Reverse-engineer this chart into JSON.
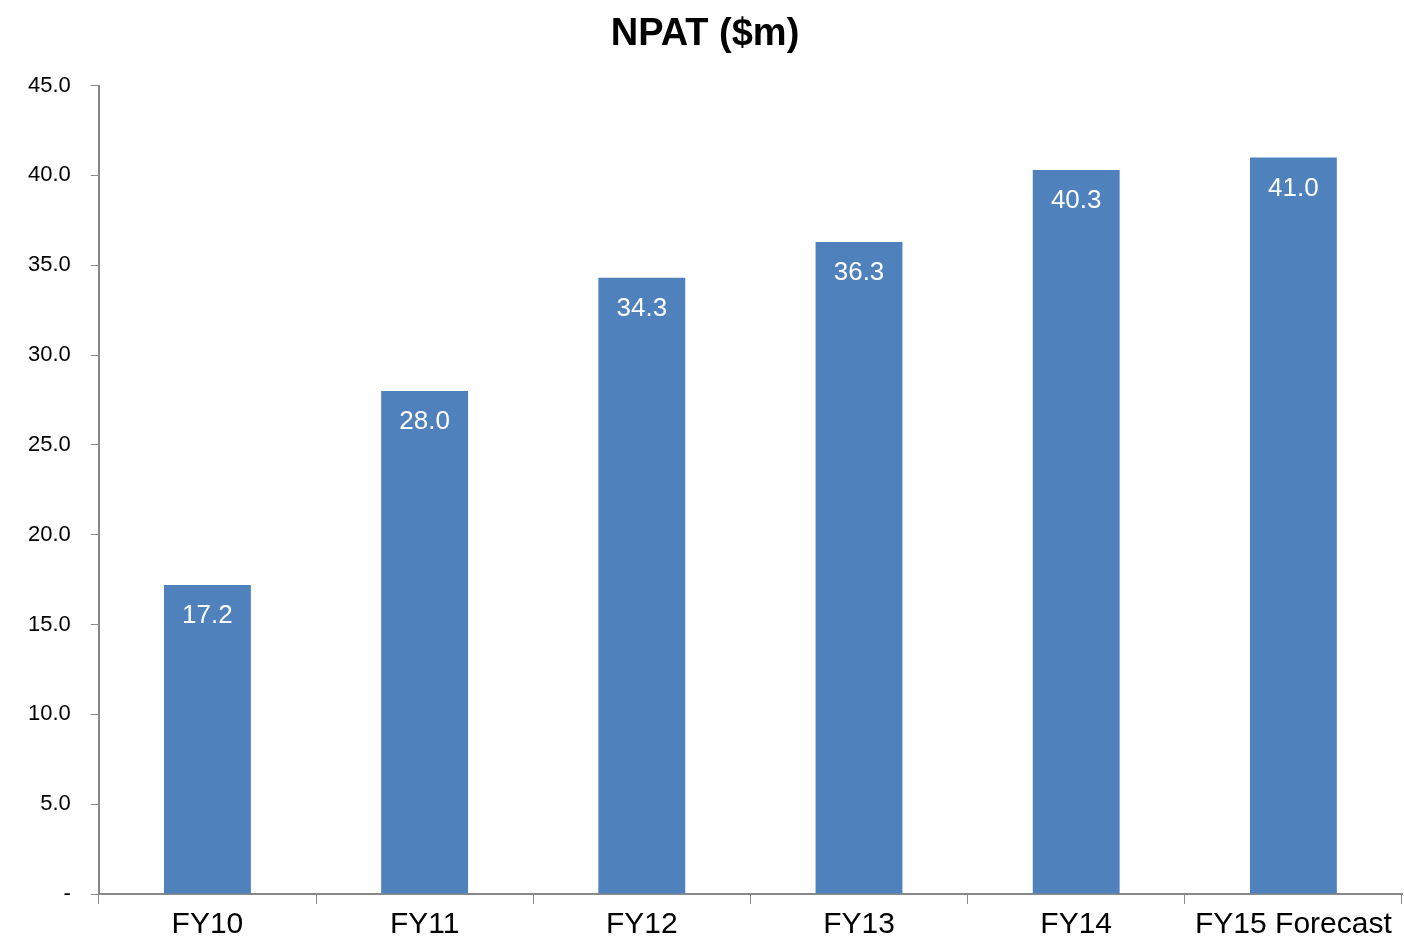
{
  "chart_data": {
    "type": "bar",
    "title": "NPAT ($m)",
    "categories": [
      "FY10",
      "FY11",
      "FY12",
      "FY13",
      "FY14",
      "FY15 Forecast"
    ],
    "values": [
      17.2,
      28.0,
      34.3,
      36.3,
      40.3,
      41.0
    ],
    "value_labels": [
      "17.2",
      "28.0",
      "34.3",
      "36.3",
      "40.3",
      "41.0"
    ],
    "color": "#4f81bd",
    "ylim": [
      0,
      45
    ],
    "yticks": [
      {
        "value": 0,
        "label": "-"
      },
      {
        "value": 5,
        "label": "5.0"
      },
      {
        "value": 10,
        "label": "10.0"
      },
      {
        "value": 15,
        "label": "15.0"
      },
      {
        "value": 20,
        "label": "20.0"
      },
      {
        "value": 25,
        "label": "25.0"
      },
      {
        "value": 30,
        "label": "30.0"
      },
      {
        "value": 35,
        "label": "35.0"
      },
      {
        "value": 40,
        "label": "40.0"
      },
      {
        "value": 45,
        "label": "45.0"
      }
    ],
    "grid": false,
    "legend": false
  }
}
